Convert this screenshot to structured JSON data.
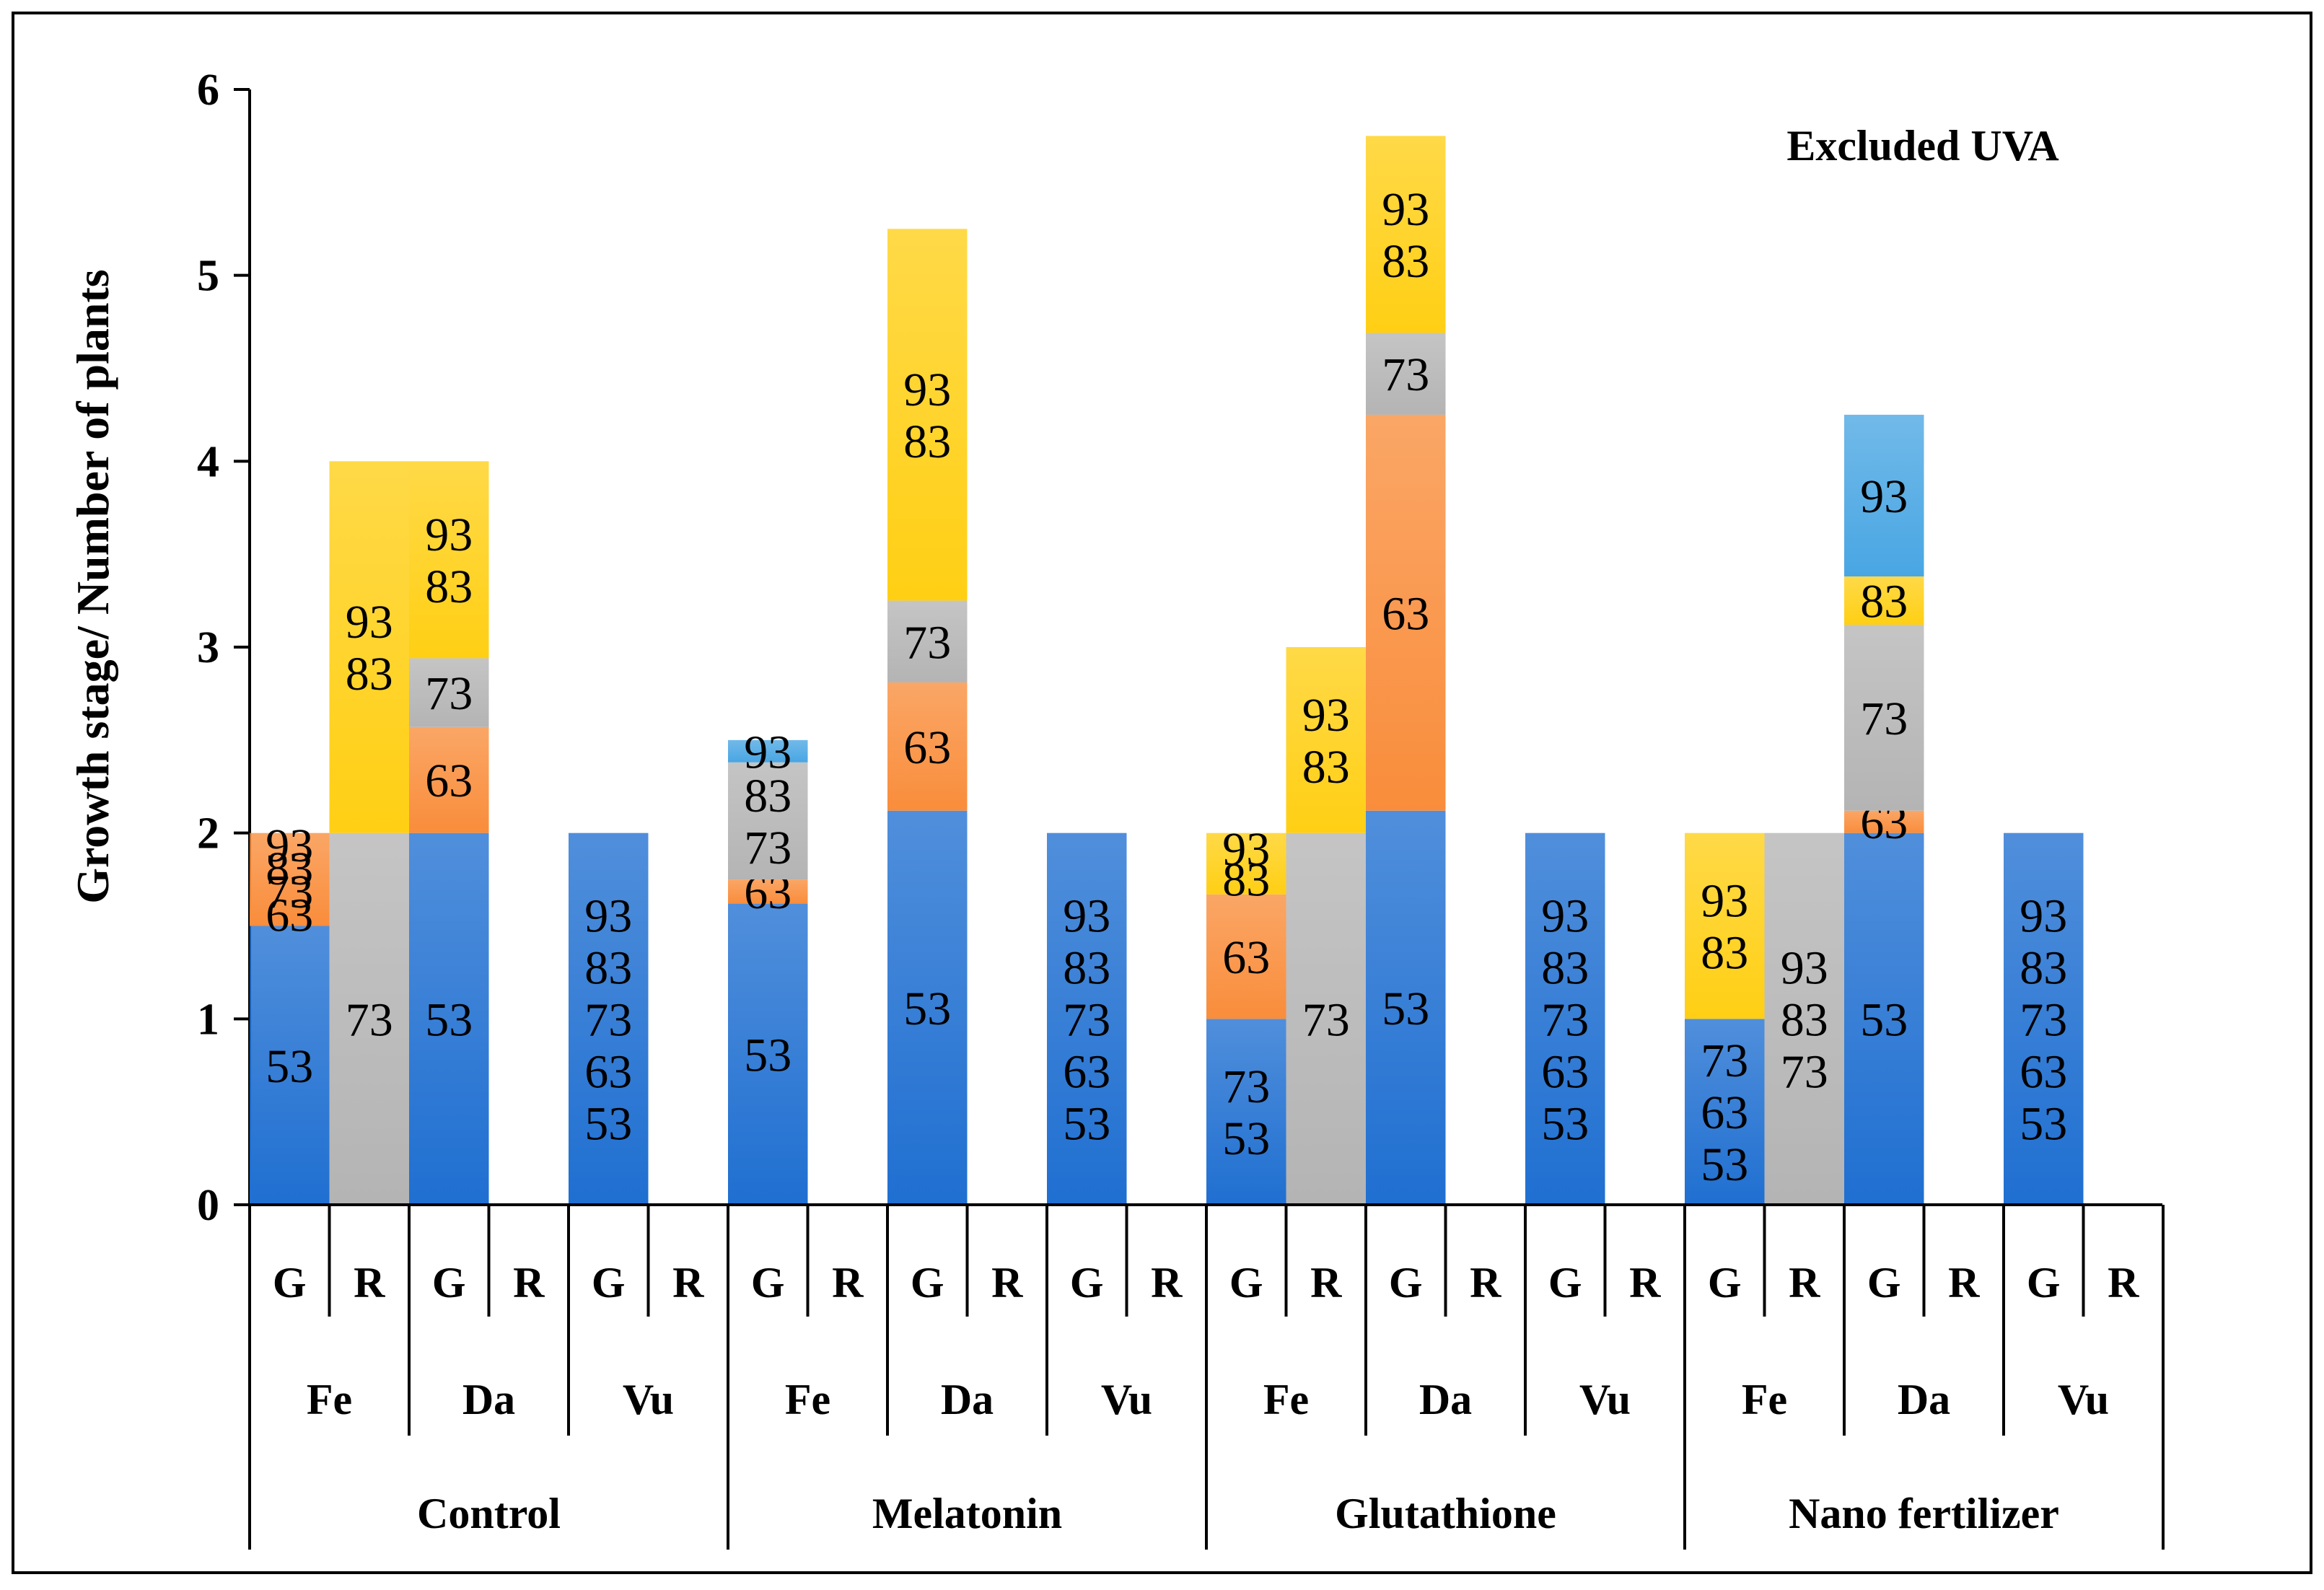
{
  "chart_data": {
    "type": "bar",
    "stacked": true,
    "title": "Excluded UVA",
    "ylabel": "Growth stage/ Number of plants",
    "xlabel": "",
    "ylim": [
      0,
      6
    ],
    "yticks": [
      "0",
      "1",
      "2",
      "3",
      "4",
      "5",
      "6"
    ],
    "colors": {
      "53": "#1f6fd1",
      "63": "#f98d3b",
      "73": "#b4b4b4",
      "83": "#ffcf14",
      "93": "#49a6e3",
      "empty": "#ffffff"
    },
    "groups": [
      "Control",
      "Melatonin",
      "Glutathione",
      "Nano fertilizer"
    ],
    "species": [
      "Fe",
      "Da",
      "Vu"
    ],
    "sub": [
      "G",
      "R"
    ],
    "bars": [
      {
        "group": "Control",
        "species": "Fe",
        "sub": "G",
        "segments": [
          {
            "stage": "53",
            "value": 1.5,
            "labels": [
              "53"
            ]
          },
          {
            "stage": "63",
            "value": 0.5,
            "labels": [
              "63",
              "73",
              "83",
              "93"
            ]
          }
        ]
      },
      {
        "group": "Control",
        "species": "Fe",
        "sub": "R",
        "segments": [
          {
            "stage": "73",
            "value": 2.0,
            "labels": [
              "73"
            ]
          },
          {
            "stage": "83",
            "value": 2.0,
            "labels": [
              "83",
              "93"
            ]
          }
        ]
      },
      {
        "group": "Control",
        "species": "Da",
        "sub": "G",
        "segments": [
          {
            "stage": "53",
            "value": 2.0,
            "labels": [
              "53"
            ]
          },
          {
            "stage": "63",
            "value": 0.57,
            "labels": [
              "63"
            ]
          },
          {
            "stage": "73",
            "value": 0.37,
            "labels": [
              "73"
            ]
          },
          {
            "stage": "83",
            "value": 1.06,
            "labels": [
              "83",
              "93"
            ]
          }
        ]
      },
      {
        "group": "Control",
        "species": "Da",
        "sub": "R",
        "segments": []
      },
      {
        "group": "Control",
        "species": "Vu",
        "sub": "G",
        "segments": [
          {
            "stage": "53",
            "value": 2.0,
            "labels": [
              "53",
              "63",
              "73",
              "83",
              "93"
            ]
          }
        ]
      },
      {
        "group": "Control",
        "species": "Vu",
        "sub": "R",
        "segments": []
      },
      {
        "group": "Melatonin",
        "species": "Fe",
        "sub": "G",
        "segments": [
          {
            "stage": "53",
            "value": 1.62,
            "labels": [
              "53"
            ]
          },
          {
            "stage": "63",
            "value": 0.13,
            "labels": [
              "63"
            ]
          },
          {
            "stage": "73",
            "value": 0.63,
            "labels": [
              "73",
              "83"
            ]
          },
          {
            "stage": "93",
            "value": 0.12,
            "labels": [
              "93"
            ]
          }
        ]
      },
      {
        "group": "Melatonin",
        "species": "Fe",
        "sub": "R",
        "segments": []
      },
      {
        "group": "Melatonin",
        "species": "Da",
        "sub": "G",
        "segments": [
          {
            "stage": "53",
            "value": 2.12,
            "labels": [
              "53"
            ]
          },
          {
            "stage": "63",
            "value": 0.69,
            "labels": [
              "63"
            ]
          },
          {
            "stage": "73",
            "value": 0.44,
            "labels": [
              "73"
            ]
          },
          {
            "stage": "83",
            "value": 2.0,
            "labels": [
              "83",
              "93"
            ]
          }
        ]
      },
      {
        "group": "Melatonin",
        "species": "Da",
        "sub": "R",
        "segments": []
      },
      {
        "group": "Melatonin",
        "species": "Vu",
        "sub": "G",
        "segments": [
          {
            "stage": "53",
            "value": 2.0,
            "labels": [
              "53",
              "63",
              "73",
              "83",
              "93"
            ]
          }
        ]
      },
      {
        "group": "Melatonin",
        "species": "Vu",
        "sub": "R",
        "segments": []
      },
      {
        "group": "Glutathione",
        "species": "Fe",
        "sub": "G",
        "segments": [
          {
            "stage": "53",
            "value": 1.0,
            "labels": [
              "53",
              "73"
            ]
          },
          {
            "stage": "63",
            "value": 0.67,
            "labels": [
              "63"
            ]
          },
          {
            "stage": "83",
            "value": 0.33,
            "labels": [
              "83",
              "93"
            ]
          }
        ]
      },
      {
        "group": "Glutathione",
        "species": "Fe",
        "sub": "R",
        "segments": [
          {
            "stage": "73",
            "value": 2.0,
            "labels": [
              "73"
            ]
          },
          {
            "stage": "83",
            "value": 1.0,
            "labels": [
              "83",
              "93"
            ]
          }
        ]
      },
      {
        "group": "Glutathione",
        "species": "Da",
        "sub": "G",
        "segments": [
          {
            "stage": "53",
            "value": 2.12,
            "labels": [
              "53"
            ]
          },
          {
            "stage": "63",
            "value": 2.13,
            "labels": [
              "63"
            ]
          },
          {
            "stage": "73",
            "value": 0.44,
            "labels": [
              "73"
            ]
          },
          {
            "stage": "83",
            "value": 1.06,
            "labels": [
              "83",
              "93"
            ]
          }
        ]
      },
      {
        "group": "Glutathione",
        "species": "Da",
        "sub": "R",
        "segments": []
      },
      {
        "group": "Glutathione",
        "species": "Vu",
        "sub": "G",
        "segments": [
          {
            "stage": "53",
            "value": 2.0,
            "labels": [
              "53",
              "63",
              "73",
              "83",
              "93"
            ]
          }
        ]
      },
      {
        "group": "Glutathione",
        "species": "Vu",
        "sub": "R",
        "segments": []
      },
      {
        "group": "Nano fertilizer",
        "species": "Fe",
        "sub": "G",
        "segments": [
          {
            "stage": "53",
            "value": 1.0,
            "labels": [
              "53",
              "63",
              "73"
            ]
          },
          {
            "stage": "83",
            "value": 1.0,
            "labels": [
              "83",
              "93"
            ]
          }
        ]
      },
      {
        "group": "Nano fertilizer",
        "species": "Fe",
        "sub": "R",
        "segments": [
          {
            "stage": "73",
            "value": 2.0,
            "labels": [
              "73",
              "83",
              "93"
            ]
          }
        ]
      },
      {
        "group": "Nano fertilizer",
        "species": "Da",
        "sub": "G",
        "segments": [
          {
            "stage": "53",
            "value": 2.0,
            "labels": [
              "53"
            ]
          },
          {
            "stage": "63",
            "value": 0.12,
            "labels": [
              "63"
            ]
          },
          {
            "stage": "73",
            "value": 1.0,
            "labels": [
              "73"
            ]
          },
          {
            "stage": "83",
            "value": 0.26,
            "labels": [
              "83"
            ]
          },
          {
            "stage": "93",
            "value": 0.87,
            "labels": [
              "93"
            ]
          }
        ]
      },
      {
        "group": "Nano fertilizer",
        "species": "Da",
        "sub": "R",
        "segments": []
      },
      {
        "group": "Nano fertilizer",
        "species": "Vu",
        "sub": "G",
        "segments": [
          {
            "stage": "53",
            "value": 2.0,
            "labels": [
              "53",
              "63",
              "73",
              "83",
              "93"
            ]
          }
        ]
      },
      {
        "group": "Nano fertilizer",
        "species": "Vu",
        "sub": "R",
        "segments": []
      }
    ]
  }
}
